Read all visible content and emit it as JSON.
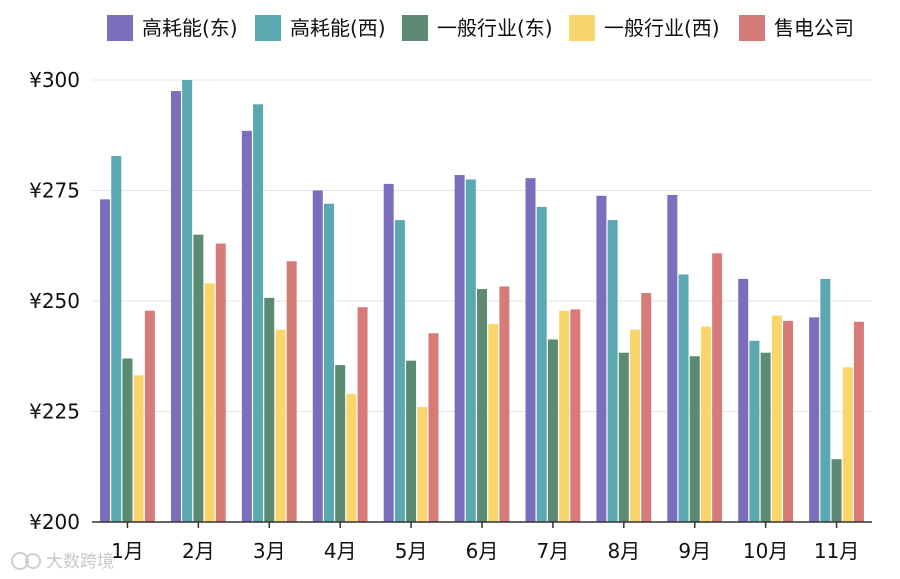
{
  "chart_data": {
    "type": "bar",
    "categories": [
      "1月",
      "2月",
      "3月",
      "4月",
      "5月",
      "6月",
      "7月",
      "8月",
      "9月",
      "10月",
      "11月"
    ],
    "series": [
      {
        "name": "高耗能(东)",
        "color": "#7b6fbd",
        "values": [
          273,
          297.5,
          288.5,
          275,
          276.5,
          278.5,
          277.8,
          273.8,
          274,
          255,
          246.3
        ]
      },
      {
        "name": "高耗能(西)",
        "color": "#5aa8b0",
        "values": [
          282.8,
          300,
          294.5,
          272,
          268.3,
          277.5,
          271.3,
          268.3,
          256,
          241,
          255
        ]
      },
      {
        "name": "一般行业(东)",
        "color": "#5c8a72",
        "values": [
          237,
          265,
          250.7,
          235.5,
          236.5,
          252.7,
          241.3,
          238.3,
          237.5,
          238.3,
          214.2
        ]
      },
      {
        "name": "一般行业(西)",
        "color": "#f8d66b",
        "values": [
          233.2,
          254,
          243.5,
          229,
          226,
          244.8,
          247.8,
          243.5,
          244.2,
          246.7,
          235
        ]
      },
      {
        "name": "售电公司",
        "color": "#d77b79",
        "values": [
          247.8,
          263,
          259,
          248.6,
          242.7,
          253.3,
          248.1,
          251.8,
          260.8,
          245.5,
          245.3
        ]
      }
    ],
    "ylim": [
      200,
      300
    ],
    "yticks": [
      200,
      225,
      250,
      275,
      300
    ],
    "ytick_labels": [
      "¥200",
      "¥225",
      "¥250",
      "¥275",
      "¥300"
    ],
    "grid": true,
    "legend_position": "top",
    "title": "",
    "xlabel": "",
    "ylabel": ""
  },
  "watermark": {
    "text": "大数跨境",
    "icon": "brand-logo-icon"
  }
}
